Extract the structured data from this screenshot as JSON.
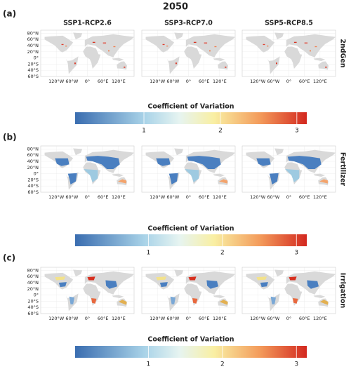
{
  "title": "2050",
  "columns": [
    "SSP1-RCP2.6",
    "SSP3-RCP7.0",
    "SSP5-RCP8.5"
  ],
  "lat_labels": [
    "80°N",
    "60°N",
    "40°N",
    "20°N",
    "0°",
    "20°S",
    "40°S",
    "60°S"
  ],
  "lon_labels": [
    "120°W",
    "60°W",
    "0°",
    "60°E",
    "120°E"
  ],
  "panels": [
    {
      "label": "(a)",
      "row_label": "2ndGen",
      "colorbar": {
        "title": "Coefficient of Variation",
        "range": [
          0.1,
          3.13
        ],
        "ticks": [
          1,
          2,
          3
        ]
      }
    },
    {
      "label": "(b)",
      "row_label": "Fertilizer",
      "colorbar": {
        "title": "Coefficient of Variation",
        "range": [
          0.01,
          3.14
        ],
        "ticks": [
          1,
          2,
          3
        ]
      }
    },
    {
      "label": "(c)",
      "row_label": "Irrigation",
      "colorbar": {
        "title": "Coefficient of Variation",
        "range": [
          0.01,
          3.14
        ],
        "ticks": [
          1,
          2,
          3
        ]
      }
    }
  ]
}
